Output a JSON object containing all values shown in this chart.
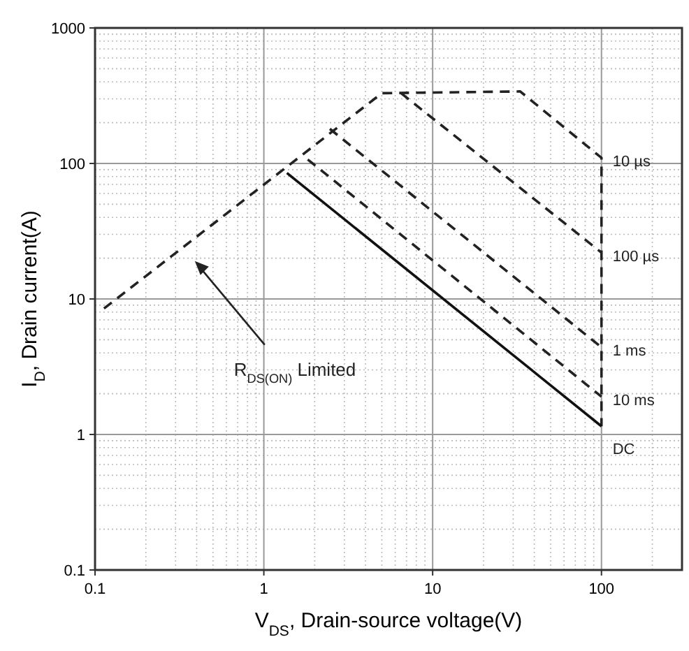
{
  "chart_data": {
    "type": "line",
    "xlabel": "V$_{DS}$, Drain-source voltage(V)",
    "ylabel": "I$_{D}$, Drain current(A)",
    "log": "xy",
    "grid": true,
    "xlim": [
      0.1,
      300
    ],
    "ylim": [
      0.1,
      1000
    ],
    "xticks": [
      0.1,
      1,
      10,
      100
    ],
    "yticks": [
      0.1,
      1,
      10,
      100,
      1000
    ],
    "series": [
      {
        "name": "10 µs",
        "color": "#222222",
        "line_style": "dashed",
        "x": [
          0.113,
          5,
          33,
          100,
          100
        ],
        "values": [
          8.5,
          330,
          340,
          110,
          1.15
        ]
      },
      {
        "name": "100 µs",
        "color": "#222222",
        "line_style": "dashed",
        "x": [
          6.5,
          100
        ],
        "values": [
          330,
          22
        ]
      },
      {
        "name": "1 ms",
        "color": "#222222",
        "line_style": "dashed",
        "x": [
          2.46,
          100
        ],
        "values": [
          180,
          4.4
        ]
      },
      {
        "name": "10 ms",
        "color": "#222222",
        "line_style": "dashed",
        "x": [
          1.82,
          100
        ],
        "values": [
          107,
          1.9
        ]
      },
      {
        "name": "DC",
        "color": "#111111",
        "line_style": "solid",
        "x": [
          1.37,
          100
        ],
        "values": [
          85,
          1.15
        ]
      }
    ],
    "annotations": [
      "R$_{DS(ON)}$ Limited"
    ]
  }
}
